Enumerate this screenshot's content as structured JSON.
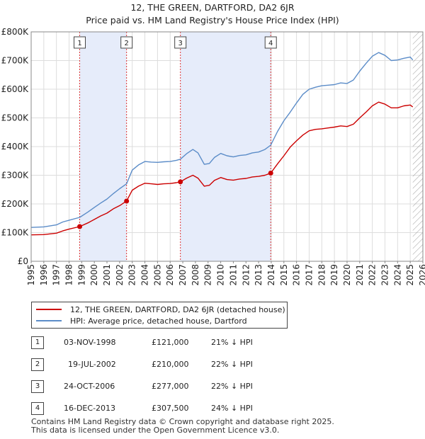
{
  "chart_data": {
    "type": "line",
    "title": "12, THE GREEN, DARTFORD, DA2 6JR",
    "subtitle": "Price paid vs. HM Land Registry's House Price Index (HPI)",
    "xlabel": "",
    "ylabel": "",
    "xlim": [
      1995,
      2026
    ],
    "ylim": [
      0,
      800000
    ],
    "x_ticks": [
      "1995",
      "1996",
      "1997",
      "1998",
      "1999",
      "2000",
      "2001",
      "2002",
      "2003",
      "2004",
      "2005",
      "2006",
      "2007",
      "2008",
      "2009",
      "2010",
      "2011",
      "2012",
      "2013",
      "2014",
      "2015",
      "2016",
      "2017",
      "2018",
      "2019",
      "2020",
      "2021",
      "2022",
      "2023",
      "2024",
      "2025",
      "2026"
    ],
    "y_ticks": [
      {
        "value": 0,
        "label": "£0"
      },
      {
        "value": 100000,
        "label": "£100K"
      },
      {
        "value": 200000,
        "label": "£200K"
      },
      {
        "value": 300000,
        "label": "£300K"
      },
      {
        "value": 400000,
        "label": "£400K"
      },
      {
        "value": 500000,
        "label": "£500K"
      },
      {
        "value": 600000,
        "label": "£600K"
      },
      {
        "value": 700000,
        "label": "£700K"
      },
      {
        "value": 800000,
        "label": "£800K"
      }
    ],
    "grid": true,
    "shaded_periods": [
      [
        1998.84,
        2002.55
      ],
      [
        2006.81,
        2013.96
      ]
    ],
    "future_hatch_from": 2025.2,
    "series": [
      {
        "name": "12, THE GREEN, DARTFORD, DA2 6JR (detached house)",
        "color": "#cc0000",
        "x": [
          1995.0,
          1996.0,
          1997.0,
          1997.5,
          1998.0,
          1998.84,
          1999.5,
          2000.0,
          2000.5,
          2001.0,
          2001.5,
          2002.0,
          2002.55,
          2003.0,
          2003.5,
          2004.0,
          2004.5,
          2005.0,
          2005.5,
          2006.0,
          2006.5,
          2006.81,
          2007.3,
          2007.8,
          2008.2,
          2008.7,
          2009.1,
          2009.5,
          2010.0,
          2010.5,
          2011.0,
          2011.5,
          2012.0,
          2012.5,
          2013.0,
          2013.5,
          2013.96,
          2014.5,
          2015.0,
          2015.5,
          2016.0,
          2016.5,
          2017.0,
          2017.5,
          2018.0,
          2018.5,
          2019.0,
          2019.5,
          2020.0,
          2020.5,
          2021.0,
          2021.5,
          2022.0,
          2022.5,
          2023.0,
          2023.5,
          2024.0,
          2024.5,
          2025.0,
          2025.2
        ],
        "values": [
          92000,
          93000,
          98000,
          106000,
          112000,
          121000,
          134000,
          146000,
          158000,
          168000,
          183000,
          194000,
          210000,
          248000,
          262000,
          272000,
          270000,
          268000,
          270000,
          271000,
          274000,
          277000,
          290000,
          300000,
          290000,
          262000,
          265000,
          282000,
          292000,
          285000,
          283000,
          287000,
          289000,
          294000,
          296000,
          300000,
          307500,
          340000,
          368000,
          398000,
          420000,
          440000,
          455000,
          460000,
          462000,
          465000,
          468000,
          472000,
          470000,
          478000,
          500000,
          520000,
          542000,
          555000,
          548000,
          535000,
          535000,
          542000,
          545000,
          538000
        ]
      },
      {
        "name": "HPI: Average price, detached house, Dartford",
        "color": "#5b8cc8",
        "x": [
          1995.0,
          1996.0,
          1997.0,
          1997.5,
          1998.0,
          1998.84,
          1999.5,
          2000.0,
          2000.5,
          2001.0,
          2001.5,
          2002.0,
          2002.55,
          2003.0,
          2003.5,
          2004.0,
          2004.5,
          2005.0,
          2005.5,
          2006.0,
          2006.5,
          2006.81,
          2007.3,
          2007.8,
          2008.2,
          2008.7,
          2009.1,
          2009.5,
          2010.0,
          2010.5,
          2011.0,
          2011.5,
          2012.0,
          2012.5,
          2013.0,
          2013.5,
          2013.96,
          2014.5,
          2015.0,
          2015.5,
          2016.0,
          2016.5,
          2017.0,
          2017.5,
          2018.0,
          2018.5,
          2019.0,
          2019.5,
          2020.0,
          2020.5,
          2021.0,
          2021.5,
          2022.0,
          2022.5,
          2023.0,
          2023.5,
          2024.0,
          2024.5,
          2025.0,
          2025.2
        ],
        "values": [
          118000,
          120000,
          127000,
          137000,
          143000,
          153000,
          172000,
          188000,
          203000,
          217000,
          236000,
          253000,
          270000,
          318000,
          336000,
          348000,
          346000,
          345000,
          347000,
          348000,
          352000,
          356000,
          375000,
          390000,
          378000,
          338000,
          341000,
          362000,
          376000,
          368000,
          364000,
          369000,
          371000,
          378000,
          381000,
          390000,
          405000,
          453000,
          490000,
          520000,
          552000,
          582000,
          600000,
          607000,
          612000,
          614000,
          616000,
          622000,
          620000,
          632000,
          663000,
          690000,
          715000,
          728000,
          718000,
          700000,
          702000,
          708000,
          712000,
          702000
        ]
      }
    ],
    "transactions": [
      {
        "num": "1",
        "x": 1998.84,
        "value": 121000
      },
      {
        "num": "2",
        "x": 2002.55,
        "value": 210000
      },
      {
        "num": "3",
        "x": 2006.81,
        "value": 277000
      },
      {
        "num": "4",
        "x": 2013.96,
        "value": 307500
      }
    ]
  },
  "legend": {
    "property_label": "12, THE GREEN, DARTFORD, DA2 6JR (detached house)",
    "hpi_label": "HPI: Average price, detached house, Dartford"
  },
  "table": [
    {
      "num": "1",
      "date": "03-NOV-1998",
      "price": "£121,000",
      "hpi": "21% ↓ HPI"
    },
    {
      "num": "2",
      "date": "19-JUL-2002",
      "price": "£210,000",
      "hpi": "22% ↓ HPI"
    },
    {
      "num": "3",
      "date": "24-OCT-2006",
      "price": "£277,000",
      "hpi": "22% ↓ HPI"
    },
    {
      "num": "4",
      "date": "16-DEC-2013",
      "price": "£307,500",
      "hpi": "24% ↓ HPI"
    }
  ],
  "footer": {
    "line1": "Contains HM Land Registry data © Crown copyright and database right 2025.",
    "line2": "This data is licensed under the Open Government Licence v3.0."
  }
}
